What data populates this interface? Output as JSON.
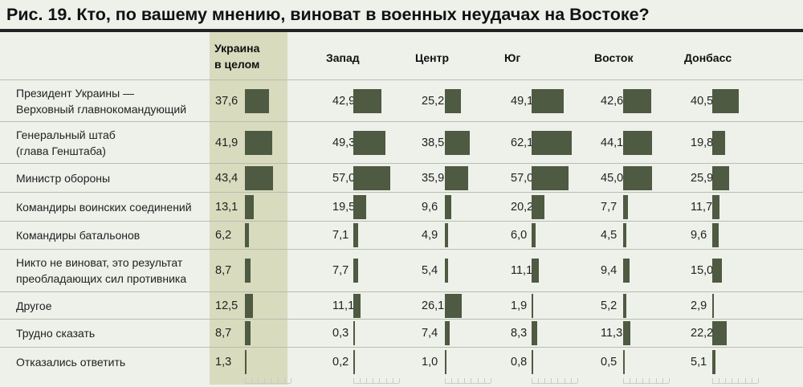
{
  "title": "Рис. 19. Кто, по вашему мнению, виноват в военных неудачах на Востоке?",
  "colors": {
    "bar": "#4e5a41",
    "highlight": "#d8dbbd",
    "background": "#eef0ea",
    "rule": "#222222"
  },
  "chart_data": {
    "type": "bar",
    "orientation": "horizontal",
    "title": "Рис. 19. Кто, по вашему мнению, виноват в военных неудачах на Востоке?",
    "categories": [
      "Президент Украины — Верховный главнокомандующий",
      "Генеральный штаб (глава Генштаба)",
      "Министр обороны",
      "Командиры воинских соединений",
      "Командиры батальонов",
      "Никто не виноват, это результат преобладающих сил противника",
      "Другое",
      "Трудно сказать",
      "Отказались ответить"
    ],
    "category_lines": [
      [
        "Президент Украины —",
        "Верховный главнокомандующий"
      ],
      [
        "Генеральный штаб",
        "(глава Генштаба)"
      ],
      [
        "Министр обороны"
      ],
      [
        "Командиры воинских соединений"
      ],
      [
        "Командиры батальонов"
      ],
      [
        "Никто не виноват, это результат",
        "преобладающих сил противника"
      ],
      [
        "Другое"
      ],
      [
        "Трудно сказать"
      ],
      [
        "Отказались ответить"
      ]
    ],
    "series": [
      {
        "name": "Украина в целом",
        "name_lines": [
          "Украина",
          "в целом"
        ],
        "highlight": true,
        "values": [
          37.6,
          41.9,
          43.4,
          13.1,
          6.2,
          8.7,
          12.5,
          8.7,
          1.3
        ],
        "labels": [
          "37,6",
          "41,9",
          "43,4",
          "13,1",
          "6,2",
          "8,7",
          "12,5",
          "8,7",
          "1,3"
        ]
      },
      {
        "name": "Запад",
        "name_lines": [
          "Запад"
        ],
        "values": [
          42.9,
          49.3,
          57.0,
          19.5,
          7.1,
          7.7,
          11.1,
          0.3,
          0.2
        ],
        "labels": [
          "42,9",
          "49,3",
          "57,0",
          "19,5",
          "7,1",
          "7,7",
          "11,1",
          "0,3",
          "0,2"
        ]
      },
      {
        "name": "Центр",
        "name_lines": [
          "Центр"
        ],
        "values": [
          25.2,
          38.5,
          35.9,
          9.6,
          4.9,
          5.4,
          26.1,
          7.4,
          1.0
        ],
        "labels": [
          "25,2",
          "38,5",
          "35,9",
          "9,6",
          "4,9",
          "5,4",
          "26,1",
          "7,4",
          "1,0"
        ]
      },
      {
        "name": "Юг",
        "name_lines": [
          "Юг"
        ],
        "values": [
          49.1,
          62.1,
          57.0,
          20.2,
          6.0,
          11.1,
          1.9,
          8.3,
          0.8
        ],
        "labels": [
          "49,1",
          "62,1",
          "57,0",
          "20,2",
          "6,0",
          "11,1",
          "1,9",
          "8,3",
          "0,8"
        ]
      },
      {
        "name": "Восток",
        "name_lines": [
          "Восток"
        ],
        "values": [
          42.6,
          44.1,
          45.0,
          7.7,
          4.5,
          9.4,
          5.2,
          11.3,
          0.5
        ],
        "labels": [
          "42,6",
          "44,1",
          "45,0",
          "7,7",
          "4,5",
          "9,4",
          "5,2",
          "11,3",
          "0,5"
        ]
      },
      {
        "name": "Донбасс",
        "name_lines": [
          "Донбасс"
        ],
        "values": [
          40.5,
          19.8,
          25.9,
          11.7,
          9.6,
          15.0,
          2.9,
          22.2,
          5.1
        ],
        "labels": [
          "40,5",
          "19,8",
          "25,9",
          "11,7",
          "9,6",
          "15,0",
          "2,9",
          "22,2",
          "5,1"
        ]
      }
    ],
    "xlim": [
      0,
      70
    ],
    "grid": false,
    "legend": "column headers"
  }
}
